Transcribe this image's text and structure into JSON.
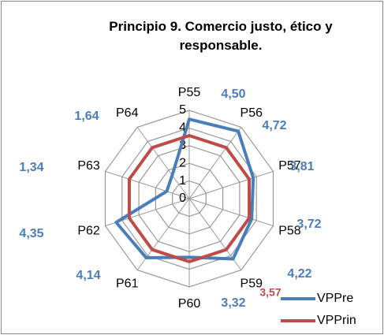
{
  "chart_data": {
    "type": "radar",
    "title": "Principio 9. Comercio justo, ético y responsable.",
    "categories": [
      "P55",
      "P56",
      "P57",
      "P58",
      "P59",
      "P60",
      "P61",
      "P62",
      "P63",
      "P64"
    ],
    "series": [
      {
        "name": "VPPre",
        "color": "#4a7ebb",
        "values": [
          4.5,
          4.72,
          3.81,
          3.72,
          4.22,
          3.32,
          4.14,
          4.35,
          1.34,
          1.64
        ],
        "value_labels": [
          "4,50",
          "4,72",
          "3,81",
          "3,72",
          "4,22",
          "3,32",
          "4,14",
          "4,35",
          "1,34",
          "1,64"
        ]
      },
      {
        "name": "VPPrin",
        "color": "#be4b48",
        "values": [
          3.57,
          3.57,
          3.57,
          3.57,
          3.57,
          3.57,
          3.57,
          3.57,
          3.57,
          3.57
        ],
        "value_labels": [
          "3,57",
          null,
          null,
          null,
          null,
          null,
          null,
          null,
          null,
          null
        ]
      }
    ],
    "ylim": [
      0,
      5
    ],
    "yticks": [
      0,
      1,
      2,
      3,
      4,
      5
    ],
    "grid": true,
    "legend": "bottom-right"
  }
}
